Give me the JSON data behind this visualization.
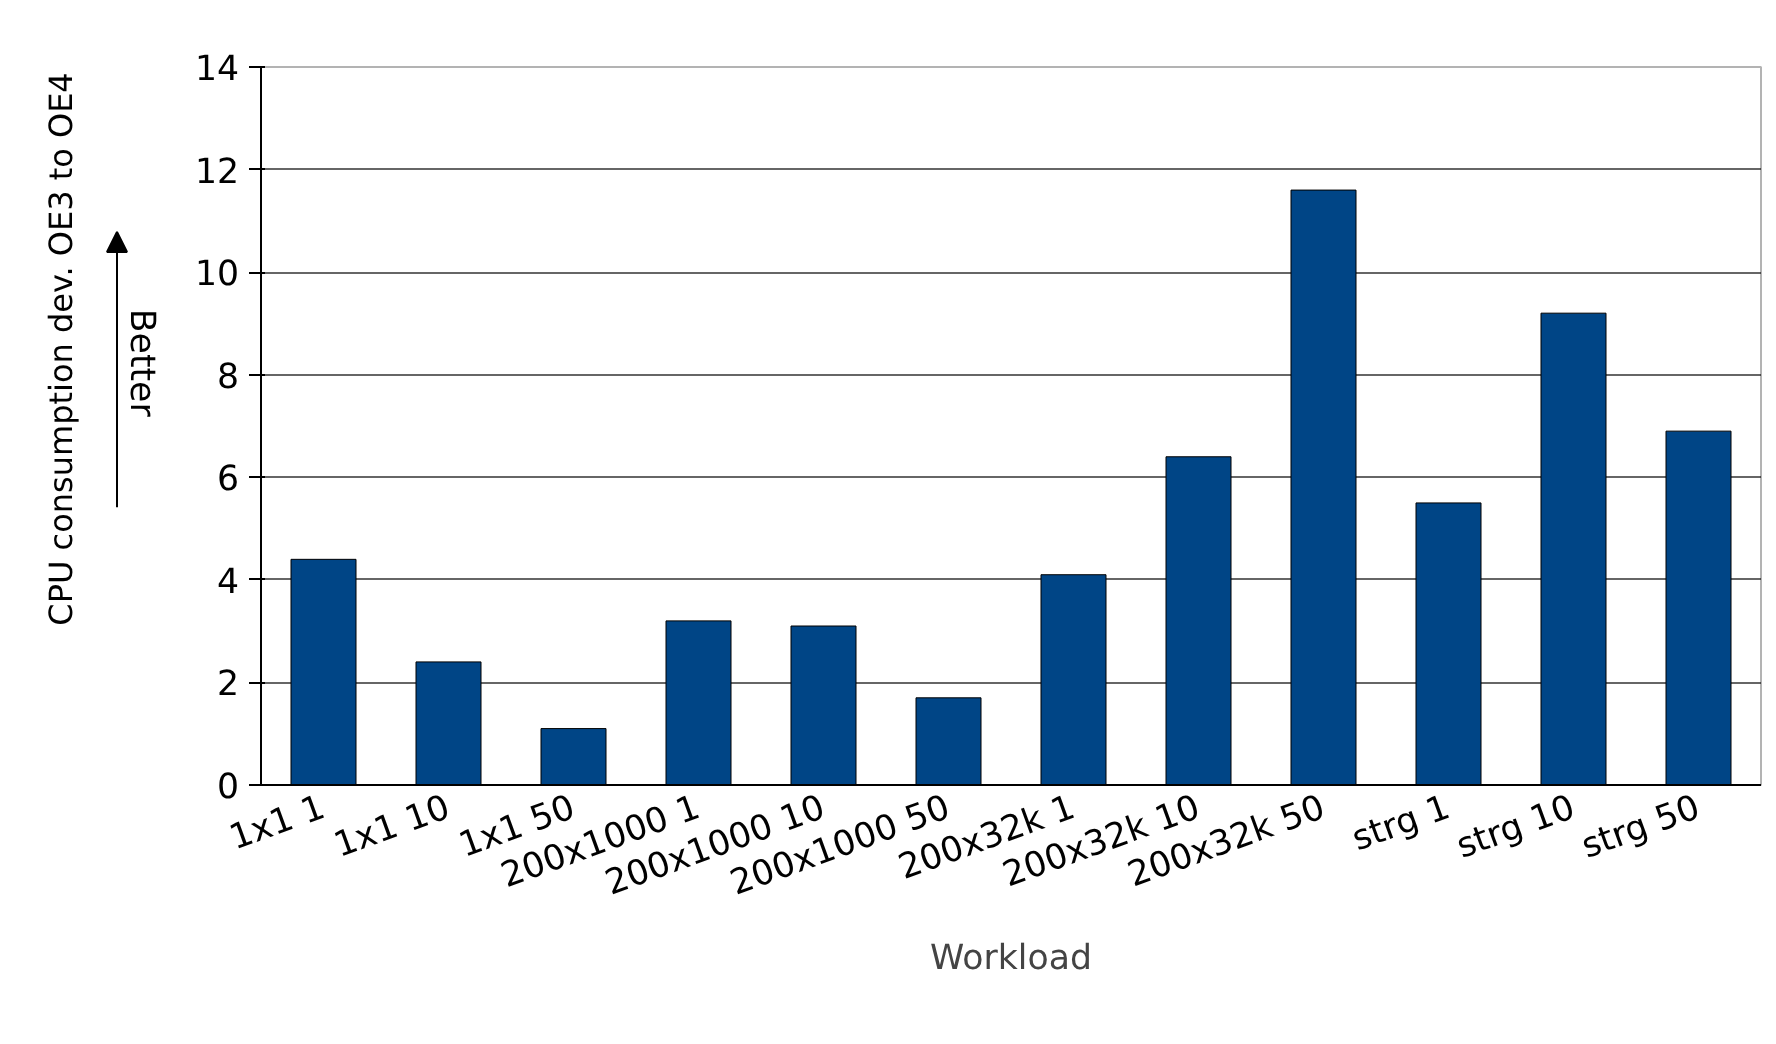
{
  "chart_data": {
    "type": "bar",
    "categories": [
      "1x1 1",
      "1x1 10",
      "1x1 50",
      "200x1000 1",
      "200x1000 10",
      "200x1000 50",
      "200x32k 1",
      "200x32k 10",
      "200x32k 50",
      "strg 1",
      "strg 10",
      "strg 50"
    ],
    "values": [
      4.4,
      2.4,
      1.1,
      3.2,
      3.1,
      1.7,
      4.1,
      6.4,
      11.6,
      5.5,
      9.2,
      6.9
    ],
    "color": "#004586",
    "xlabel": "Workload",
    "ylabel": "CPU consumption dev. OE3 to OE4",
    "ylim": [
      0,
      14
    ],
    "yticks": [
      0,
      2,
      4,
      6,
      8,
      10,
      12,
      14
    ],
    "grid": "y",
    "annotations": [
      "Better"
    ]
  }
}
